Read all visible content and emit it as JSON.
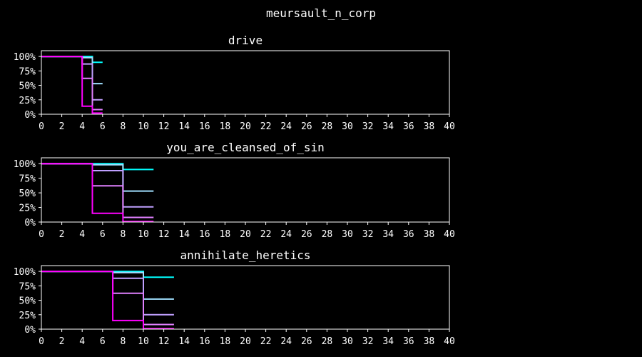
{
  "figure_title": "meursault_n_corp",
  "chart_data": [
    {
      "type": "line",
      "title": "drive",
      "xlim": [
        0,
        40
      ],
      "ylim": [
        0,
        1.1
      ],
      "x_ticks": [
        0,
        2,
        4,
        6,
        8,
        10,
        12,
        14,
        16,
        18,
        20,
        22,
        24,
        26,
        28,
        30,
        32,
        34,
        36,
        38,
        40
      ],
      "y_ticks": [
        0,
        0.25,
        0.5,
        0.75,
        1.0
      ],
      "y_tick_labels": [
        "0%",
        "25%",
        "50%",
        "75%",
        "100%"
      ],
      "grid": false,
      "series": [
        {
          "color": "#00ffff",
          "points": [
            [
              0,
              1.0
            ],
            [
              5,
              1.0
            ],
            [
              5,
              0.9
            ],
            [
              6,
              0.9
            ]
          ]
        },
        {
          "color": "#a0e0ff",
          "points": [
            [
              0,
              1.0
            ],
            [
              4,
              1.0
            ],
            [
              4,
              0.98
            ],
            [
              5,
              0.98
            ],
            [
              5,
              0.53
            ],
            [
              6,
              0.53
            ]
          ]
        },
        {
          "color": "#c0a0ff",
          "points": [
            [
              0,
              1.0
            ],
            [
              4,
              1.0
            ],
            [
              4,
              0.87
            ],
            [
              5,
              0.87
            ],
            [
              5,
              0.25
            ],
            [
              6,
              0.25
            ]
          ]
        },
        {
          "color": "#e080ff",
          "points": [
            [
              0,
              1.0
            ],
            [
              4,
              1.0
            ],
            [
              4,
              0.62
            ],
            [
              5,
              0.62
            ],
            [
              5,
              0.08
            ],
            [
              6,
              0.08
            ]
          ]
        },
        {
          "color": "#ff00ff",
          "points": [
            [
              0,
              1.0
            ],
            [
              4,
              1.0
            ],
            [
              4,
              0.14
            ],
            [
              5,
              0.14
            ],
            [
              5,
              0.02
            ],
            [
              6,
              0.02
            ]
          ]
        }
      ]
    },
    {
      "type": "line",
      "title": "you_are_cleansed_of_sin",
      "xlim": [
        0,
        40
      ],
      "ylim": [
        0,
        1.1
      ],
      "x_ticks": [
        0,
        2,
        4,
        6,
        8,
        10,
        12,
        14,
        16,
        18,
        20,
        22,
        24,
        26,
        28,
        30,
        32,
        34,
        36,
        38,
        40
      ],
      "y_ticks": [
        0,
        0.25,
        0.5,
        0.75,
        1.0
      ],
      "y_tick_labels": [
        "0%",
        "25%",
        "50%",
        "75%",
        "100%"
      ],
      "grid": false,
      "series": [
        {
          "color": "#00ffff",
          "points": [
            [
              0,
              1.0
            ],
            [
              8,
              1.0
            ],
            [
              8,
              0.9
            ],
            [
              11,
              0.9
            ]
          ]
        },
        {
          "color": "#a0e0ff",
          "points": [
            [
              0,
              1.0
            ],
            [
              5,
              1.0
            ],
            [
              5,
              0.98
            ],
            [
              8,
              0.98
            ],
            [
              8,
              0.53
            ],
            [
              11,
              0.53
            ]
          ]
        },
        {
          "color": "#c0a0ff",
          "points": [
            [
              0,
              1.0
            ],
            [
              5,
              1.0
            ],
            [
              5,
              0.88
            ],
            [
              8,
              0.88
            ],
            [
              8,
              0.26
            ],
            [
              11,
              0.26
            ]
          ]
        },
        {
          "color": "#e080ff",
          "points": [
            [
              0,
              1.0
            ],
            [
              5,
              1.0
            ],
            [
              5,
              0.62
            ],
            [
              8,
              0.62
            ],
            [
              8,
              0.08
            ],
            [
              11,
              0.08
            ]
          ]
        },
        {
          "color": "#ff00ff",
          "points": [
            [
              0,
              1.0
            ],
            [
              5,
              1.0
            ],
            [
              5,
              0.15
            ],
            [
              8,
              0.15
            ],
            [
              8,
              0.01
            ],
            [
              11,
              0.01
            ]
          ]
        }
      ]
    },
    {
      "type": "line",
      "title": "annihilate_heretics",
      "xlim": [
        0,
        40
      ],
      "ylim": [
        0,
        1.1
      ],
      "x_ticks": [
        0,
        2,
        4,
        6,
        8,
        10,
        12,
        14,
        16,
        18,
        20,
        22,
        24,
        26,
        28,
        30,
        32,
        34,
        36,
        38,
        40
      ],
      "y_ticks": [
        0,
        0.25,
        0.5,
        0.75,
        1.0
      ],
      "y_tick_labels": [
        "0%",
        "25%",
        "50%",
        "75%",
        "100%"
      ],
      "grid": false,
      "series": [
        {
          "color": "#00ffff",
          "points": [
            [
              0,
              1.0
            ],
            [
              10,
              1.0
            ],
            [
              10,
              0.9
            ],
            [
              13,
              0.9
            ]
          ]
        },
        {
          "color": "#a0e0ff",
          "points": [
            [
              0,
              1.0
            ],
            [
              7,
              1.0
            ],
            [
              7,
              0.98
            ],
            [
              10,
              0.98
            ],
            [
              10,
              0.52
            ],
            [
              13,
              0.52
            ]
          ]
        },
        {
          "color": "#c0a0ff",
          "points": [
            [
              0,
              1.0
            ],
            [
              7,
              1.0
            ],
            [
              7,
              0.88
            ],
            [
              10,
              0.88
            ],
            [
              10,
              0.25
            ],
            [
              13,
              0.25
            ]
          ]
        },
        {
          "color": "#e080ff",
          "points": [
            [
              0,
              1.0
            ],
            [
              7,
              1.0
            ],
            [
              7,
              0.62
            ],
            [
              10,
              0.62
            ],
            [
              10,
              0.08
            ],
            [
              13,
              0.08
            ]
          ]
        },
        {
          "color": "#ff00ff",
          "points": [
            [
              0,
              1.0
            ],
            [
              7,
              1.0
            ],
            [
              7,
              0.15
            ],
            [
              10,
              0.15
            ],
            [
              10,
              0.01
            ],
            [
              13,
              0.01
            ]
          ]
        }
      ]
    }
  ]
}
